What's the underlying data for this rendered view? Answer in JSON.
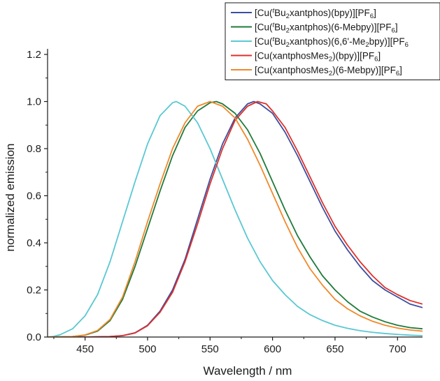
{
  "chart_data": {
    "type": "line",
    "title": "",
    "xlabel": "Wavelength / nm",
    "ylabel": "normalized emission",
    "xlim": [
      420,
      720
    ],
    "ylim": [
      0.0,
      1.2
    ],
    "xticks": [
      450,
      500,
      550,
      600,
      650,
      700
    ],
    "yticks": [
      "0.0",
      "0.2",
      "0.4",
      "0.6",
      "0.8",
      "1.0",
      "1.2"
    ],
    "grid": false,
    "legend_position": "top-right",
    "series": [
      {
        "name": "[Cu(tBu2xantphos)(bpy)][PF6]",
        "legend_parts": [
          [
            "[Cu(",
            ""
          ],
          [
            "t",
            "sup"
          ],
          [
            "Bu",
            ""
          ],
          [
            "2",
            "sub"
          ],
          [
            "xantphos)(bpy)][PF",
            ""
          ],
          [
            "6",
            "sub"
          ],
          [
            "]",
            ""
          ]
        ],
        "color": "#3b4ea0",
        "points": [
          [
            420,
            0
          ],
          [
            450,
            0
          ],
          [
            470,
            0.002
          ],
          [
            480,
            0.006
          ],
          [
            490,
            0.018
          ],
          [
            500,
            0.05
          ],
          [
            510,
            0.11
          ],
          [
            520,
            0.2
          ],
          [
            530,
            0.33
          ],
          [
            540,
            0.5
          ],
          [
            550,
            0.67
          ],
          [
            560,
            0.82
          ],
          [
            570,
            0.93
          ],
          [
            580,
            0.99
          ],
          [
            585,
            1.0
          ],
          [
            590,
            0.99
          ],
          [
            600,
            0.95
          ],
          [
            610,
            0.87
          ],
          [
            620,
            0.77
          ],
          [
            630,
            0.66
          ],
          [
            640,
            0.55
          ],
          [
            650,
            0.45
          ],
          [
            660,
            0.37
          ],
          [
            670,
            0.3
          ],
          [
            680,
            0.24
          ],
          [
            690,
            0.2
          ],
          [
            700,
            0.17
          ],
          [
            710,
            0.14
          ],
          [
            720,
            0.125
          ]
        ]
      },
      {
        "name": "[Cu(tBu2xantphos)(6-Mebpy)][PF6]",
        "legend_parts": [
          [
            "[Cu(",
            ""
          ],
          [
            "t",
            "sup"
          ],
          [
            "Bu",
            ""
          ],
          [
            "2",
            "sub"
          ],
          [
            "xantphos)(6-Mebpy)][PF",
            ""
          ],
          [
            "6",
            "sub"
          ],
          [
            "]",
            ""
          ]
        ],
        "color": "#1f7a3a",
        "points": [
          [
            420,
            0
          ],
          [
            440,
            0.002
          ],
          [
            450,
            0.008
          ],
          [
            460,
            0.025
          ],
          [
            470,
            0.07
          ],
          [
            480,
            0.16
          ],
          [
            490,
            0.3
          ],
          [
            500,
            0.46
          ],
          [
            510,
            0.62
          ],
          [
            520,
            0.77
          ],
          [
            530,
            0.89
          ],
          [
            540,
            0.96
          ],
          [
            550,
            0.995
          ],
          [
            555,
            1.0
          ],
          [
            560,
            0.99
          ],
          [
            570,
            0.95
          ],
          [
            580,
            0.88
          ],
          [
            590,
            0.78
          ],
          [
            600,
            0.66
          ],
          [
            610,
            0.54
          ],
          [
            620,
            0.43
          ],
          [
            630,
            0.34
          ],
          [
            640,
            0.26
          ],
          [
            650,
            0.2
          ],
          [
            660,
            0.15
          ],
          [
            670,
            0.11
          ],
          [
            680,
            0.085
          ],
          [
            690,
            0.065
          ],
          [
            700,
            0.05
          ],
          [
            710,
            0.04
          ],
          [
            720,
            0.035
          ]
        ]
      },
      {
        "name": "[Cu(tBu2xantphos)(6,6'-Me2bpy)][PF6]",
        "legend_parts": [
          [
            "[Cu(",
            ""
          ],
          [
            "t",
            "sup"
          ],
          [
            "Bu",
            ""
          ],
          [
            "2",
            "sub"
          ],
          [
            "xantphos)(6,6'-Me",
            ""
          ],
          [
            "2",
            "sub"
          ],
          [
            "bpy)][PF",
            ""
          ],
          [
            "6",
            "sub"
          ]
        ],
        "color": "#5ac8d2",
        "points": [
          [
            420,
            0
          ],
          [
            425,
            0.003
          ],
          [
            430,
            0.01
          ],
          [
            440,
            0.035
          ],
          [
            450,
            0.09
          ],
          [
            460,
            0.18
          ],
          [
            470,
            0.32
          ],
          [
            480,
            0.49
          ],
          [
            490,
            0.66
          ],
          [
            500,
            0.82
          ],
          [
            510,
            0.94
          ],
          [
            520,
            0.995
          ],
          [
            523,
            1.0
          ],
          [
            530,
            0.98
          ],
          [
            540,
            0.91
          ],
          [
            550,
            0.8
          ],
          [
            560,
            0.67
          ],
          [
            570,
            0.54
          ],
          [
            580,
            0.42
          ],
          [
            590,
            0.32
          ],
          [
            600,
            0.24
          ],
          [
            610,
            0.18
          ],
          [
            620,
            0.13
          ],
          [
            630,
            0.095
          ],
          [
            640,
            0.07
          ],
          [
            650,
            0.05
          ],
          [
            660,
            0.037
          ],
          [
            670,
            0.027
          ],
          [
            680,
            0.02
          ],
          [
            690,
            0.015
          ],
          [
            700,
            0.011
          ],
          [
            710,
            0.008
          ],
          [
            720,
            0.006
          ]
        ]
      },
      {
        "name": "[Cu(xantphosMes2)(bpy)][PF6]",
        "legend_parts": [
          [
            "[Cu(xantphosMes",
            ""
          ],
          [
            "2",
            "sub"
          ],
          [
            ")(bpy)][PF",
            ""
          ],
          [
            "6",
            "sub"
          ],
          [
            "]",
            ""
          ]
        ],
        "color": "#e0302a",
        "points": [
          [
            420,
            0
          ],
          [
            450,
            0
          ],
          [
            470,
            0.002
          ],
          [
            480,
            0.006
          ],
          [
            490,
            0.017
          ],
          [
            500,
            0.048
          ],
          [
            510,
            0.105
          ],
          [
            520,
            0.19
          ],
          [
            530,
            0.32
          ],
          [
            540,
            0.48
          ],
          [
            550,
            0.65
          ],
          [
            560,
            0.8
          ],
          [
            570,
            0.92
          ],
          [
            580,
            0.98
          ],
          [
            588,
            1.0
          ],
          [
            595,
            0.99
          ],
          [
            600,
            0.96
          ],
          [
            610,
            0.89
          ],
          [
            620,
            0.79
          ],
          [
            630,
            0.68
          ],
          [
            640,
            0.57
          ],
          [
            650,
            0.47
          ],
          [
            660,
            0.39
          ],
          [
            670,
            0.32
          ],
          [
            680,
            0.26
          ],
          [
            690,
            0.21
          ],
          [
            700,
            0.18
          ],
          [
            710,
            0.155
          ],
          [
            720,
            0.14
          ]
        ]
      },
      {
        "name": "[Cu(xantphosMes2)(6-Mebpy)][PF6]",
        "legend_parts": [
          [
            "[Cu(xantphosMes",
            ""
          ],
          [
            "2",
            "sub"
          ],
          [
            ")(6-Mebpy)][PF",
            ""
          ],
          [
            "6",
            "sub"
          ],
          [
            "]",
            ""
          ]
        ],
        "color": "#f0892b",
        "points": [
          [
            420,
            0
          ],
          [
            440,
            0.002
          ],
          [
            450,
            0.009
          ],
          [
            460,
            0.028
          ],
          [
            470,
            0.075
          ],
          [
            480,
            0.17
          ],
          [
            490,
            0.32
          ],
          [
            500,
            0.49
          ],
          [
            510,
            0.65
          ],
          [
            520,
            0.8
          ],
          [
            530,
            0.91
          ],
          [
            540,
            0.98
          ],
          [
            550,
            1.0
          ],
          [
            560,
            0.98
          ],
          [
            570,
            0.93
          ],
          [
            580,
            0.84
          ],
          [
            590,
            0.73
          ],
          [
            600,
            0.61
          ],
          [
            610,
            0.49
          ],
          [
            620,
            0.38
          ],
          [
            630,
            0.29
          ],
          [
            640,
            0.22
          ],
          [
            650,
            0.16
          ],
          [
            660,
            0.12
          ],
          [
            670,
            0.09
          ],
          [
            680,
            0.067
          ],
          [
            690,
            0.05
          ],
          [
            700,
            0.038
          ],
          [
            710,
            0.03
          ],
          [
            720,
            0.025
          ]
        ]
      }
    ]
  }
}
